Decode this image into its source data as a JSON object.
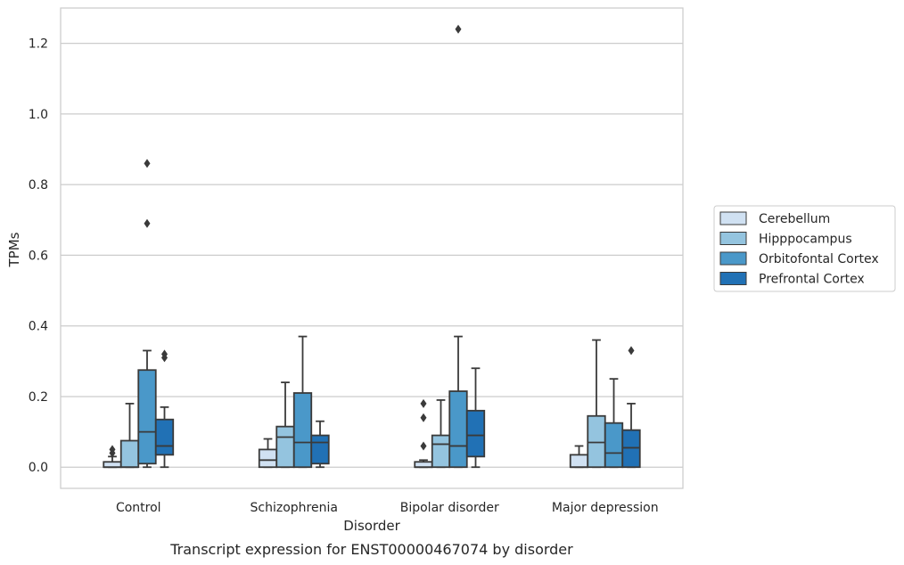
{
  "chart_data": {
    "type": "box",
    "caption": "Transcript expression for ENST00000467074 by disorder",
    "xlabel": "Disorder",
    "ylabel": "TPMs",
    "ylim": [
      -0.06,
      1.3
    ],
    "yticks": [
      0.0,
      0.2,
      0.4,
      0.6,
      0.8,
      1.0,
      1.2
    ],
    "ytick_labels": [
      "0.0",
      "0.2",
      "0.4",
      "0.6",
      "0.8",
      "1.0",
      "1.2"
    ],
    "grid": true,
    "legend_position": "right",
    "categories": [
      "Control",
      "Schizophrenia",
      "Bipolar disorder",
      "Major depression"
    ],
    "series": [
      {
        "name": "Cerebellum",
        "color": "#d0e1f2",
        "boxes": [
          {
            "category": "Control",
            "whislo": 0.0,
            "q1": 0.0,
            "med": 0.0,
            "q3": 0.015,
            "whishi": 0.03,
            "fliers": [
              0.04,
              0.05
            ]
          },
          {
            "category": "Schizophrenia",
            "whislo": 0.0,
            "q1": 0.0,
            "med": 0.02,
            "q3": 0.05,
            "whishi": 0.08,
            "fliers": []
          },
          {
            "category": "Bipolar disorder",
            "whislo": 0.0,
            "q1": 0.0,
            "med": 0.0,
            "q3": 0.015,
            "whishi": 0.02,
            "fliers": [
              0.06,
              0.14,
              0.18
            ]
          },
          {
            "category": "Major depression",
            "whislo": 0.0,
            "q1": 0.0,
            "med": 0.0,
            "q3": 0.035,
            "whishi": 0.06,
            "fliers": []
          }
        ]
      },
      {
        "name": "Hipppocampus",
        "color": "#94c4df",
        "boxes": [
          {
            "category": "Control",
            "whislo": 0.0,
            "q1": 0.0,
            "med": 0.0,
            "q3": 0.075,
            "whishi": 0.18,
            "fliers": []
          },
          {
            "category": "Schizophrenia",
            "whislo": 0.0,
            "q1": 0.0,
            "med": 0.085,
            "q3": 0.115,
            "whishi": 0.24,
            "fliers": []
          },
          {
            "category": "Bipolar disorder",
            "whislo": 0.0,
            "q1": 0.0,
            "med": 0.065,
            "q3": 0.09,
            "whishi": 0.19,
            "fliers": []
          },
          {
            "category": "Major depression",
            "whislo": 0.0,
            "q1": 0.0,
            "med": 0.07,
            "q3": 0.145,
            "whishi": 0.36,
            "fliers": []
          }
        ]
      },
      {
        "name": "Orbitofontal Cortex",
        "color": "#4a98c9",
        "boxes": [
          {
            "category": "Control",
            "whislo": 0.0,
            "q1": 0.01,
            "med": 0.1,
            "q3": 0.275,
            "whishi": 0.33,
            "fliers": [
              0.69,
              0.86
            ]
          },
          {
            "category": "Schizophrenia",
            "whislo": 0.0,
            "q1": 0.0,
            "med": 0.07,
            "q3": 0.21,
            "whishi": 0.37,
            "fliers": []
          },
          {
            "category": "Bipolar disorder",
            "whislo": 0.0,
            "q1": 0.0,
            "med": 0.06,
            "q3": 0.215,
            "whishi": 0.37,
            "fliers": [
              1.24
            ]
          },
          {
            "category": "Major depression",
            "whislo": 0.0,
            "q1": 0.0,
            "med": 0.04,
            "q3": 0.125,
            "whishi": 0.25,
            "fliers": []
          }
        ]
      },
      {
        "name": "Prefrontal Cortex",
        "color": "#2171b5",
        "boxes": [
          {
            "category": "Control",
            "whislo": 0.0,
            "q1": 0.035,
            "med": 0.06,
            "q3": 0.135,
            "whishi": 0.17,
            "fliers": [
              0.31,
              0.32
            ]
          },
          {
            "category": "Schizophrenia",
            "whislo": 0.0,
            "q1": 0.01,
            "med": 0.07,
            "q3": 0.09,
            "whishi": 0.13,
            "fliers": []
          },
          {
            "category": "Bipolar disorder",
            "whislo": 0.0,
            "q1": 0.03,
            "med": 0.09,
            "q3": 0.16,
            "whishi": 0.28,
            "fliers": []
          },
          {
            "category": "Major depression",
            "whislo": 0.0,
            "q1": 0.0,
            "med": 0.055,
            "q3": 0.105,
            "whishi": 0.18,
            "fliers": [
              0.33
            ]
          }
        ]
      }
    ]
  }
}
